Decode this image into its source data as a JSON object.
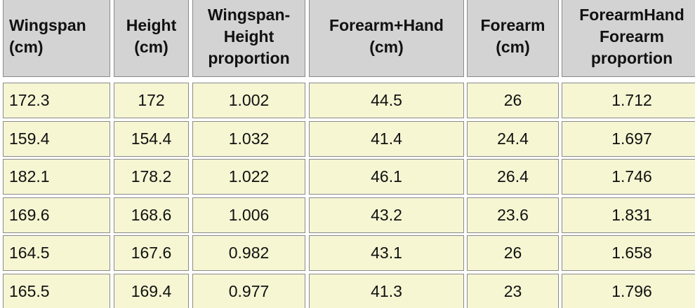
{
  "table": {
    "header": [
      [
        "Wingspan",
        "(cm)"
      ],
      [
        "Height",
        "(cm)"
      ],
      [
        "Wingspan-",
        "Height",
        "proportion"
      ],
      [
        "Forearm+Hand",
        "(cm)"
      ],
      [
        "Forearm",
        "(cm)"
      ],
      [
        "ForearmHand",
        "Forearm",
        "proportion"
      ]
    ],
    "rows": [
      [
        "172.3",
        "172",
        "1.002",
        "44.5",
        "26",
        "1.712"
      ],
      [
        "159.4",
        "154.4",
        "1.032",
        "41.4",
        "24.4",
        "1.697"
      ],
      [
        "182.1",
        "178.2",
        "1.022",
        "46.1",
        "26.4",
        "1.746"
      ],
      [
        "169.6",
        "168.6",
        "1.006",
        "43.2",
        "23.6",
        "1.831"
      ],
      [
        "164.5",
        "167.6",
        "0.982",
        "43.1",
        "26",
        "1.658"
      ],
      [
        "165.5",
        "169.4",
        "0.977",
        "41.3",
        "23",
        "1.796"
      ]
    ]
  }
}
